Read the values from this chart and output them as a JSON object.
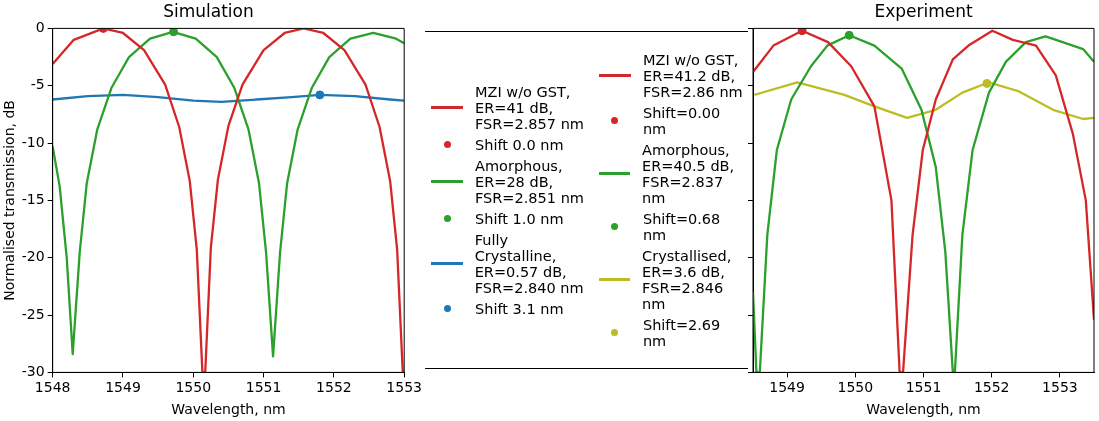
{
  "chart_data": [
    {
      "type": "line",
      "title": "Simulation",
      "xlabel": "Wavelength, nm",
      "ylabel": "Normalised transmission, dB",
      "xlim": [
        1548,
        1553
      ],
      "xticks": [
        1548,
        1549,
        1550,
        1551,
        1552,
        1553
      ],
      "ylim": [
        -30,
        0
      ],
      "yticks": [
        -30,
        -25,
        -20,
        -15,
        -10,
        -5,
        0
      ],
      "legend": "right",
      "series": [
        {
          "name": "MZI w/o GST,\nER=41 dB,\nFSR=2.857 nm",
          "color": "#d62728",
          "x": [
            1548,
            1548.3,
            1548.72,
            1549,
            1549.3,
            1549.6,
            1549.8,
            1549.95,
            1550.05,
            1550.13,
            1550.17,
            1550.25,
            1550.35,
            1550.5,
            1550.7,
            1551,
            1551.3,
            1551.57,
            1551.85,
            1552.15,
            1552.45,
            1552.65,
            1552.8,
            1552.9,
            1552.98
          ],
          "values": [
            -3.1,
            -1,
            0,
            -0.4,
            -1.9,
            -4.9,
            -8.6,
            -13.3,
            -19.3,
            -30,
            -30,
            -19.1,
            -13.2,
            -8.5,
            -4.9,
            -1.9,
            -0.4,
            0,
            -0.4,
            -1.9,
            -4.9,
            -8.6,
            -13.3,
            -19.3,
            -30
          ]
        },
        {
          "name": "Shift 0.0 nm",
          "type": "scatter",
          "marker": "circle",
          "color": "#d62728",
          "x": [
            1548.72
          ],
          "values": [
            0
          ]
        },
        {
          "name": "Amorphous,\nER=28 dB,\nFSR=2.851 nm",
          "color": "#2ca02c",
          "x": [
            1548,
            1548.1,
            1548.2,
            1548.285,
            1548.385,
            1548.485,
            1548.635,
            1548.835,
            1549.085,
            1549.385,
            1549.71,
            1550.035,
            1550.335,
            1550.585,
            1550.785,
            1550.935,
            1551.035,
            1551.135,
            1551.235,
            1551.335,
            1551.485,
            1551.685,
            1551.935,
            1552.235,
            1552.56,
            1552.885,
            1553
          ],
          "values": [
            -10.3,
            -13.8,
            -20,
            -28.4,
            -19.5,
            -13.5,
            -8.8,
            -5.2,
            -2.5,
            -0.9,
            -0.3,
            -0.9,
            -2.5,
            -5.2,
            -8.8,
            -13.5,
            -19.5,
            -28.6,
            -19.5,
            -13.5,
            -8.8,
            -5.2,
            -2.5,
            -0.9,
            -0.4,
            -0.9,
            -1.3
          ]
        },
        {
          "name": "Shift 1.0 nm",
          "type": "scatter",
          "marker": "circle",
          "color": "#2ca02c",
          "x": [
            1549.72
          ],
          "values": [
            -0.3
          ]
        },
        {
          "name": "Fully Crystalline,\nER=0.57 dB,\nFSR=2.840 nm",
          "color": "#1f77b4",
          "x": [
            1548,
            1548.5,
            1549,
            1549.5,
            1550,
            1550.4,
            1550.9,
            1551.4,
            1551.8,
            1552.3,
            1552.8,
            1553
          ],
          "values": [
            -6.2,
            -5.9,
            -5.8,
            -6,
            -6.3,
            -6.4,
            -6.2,
            -6,
            -5.8,
            -5.9,
            -6.2,
            -6.3
          ]
        },
        {
          "name": "Shift 3.1 nm",
          "type": "scatter",
          "marker": "circle",
          "color": "#1f77b4",
          "x": [
            1551.8
          ],
          "values": [
            -5.8
          ]
        }
      ]
    },
    {
      "type": "line",
      "title": "Experiment",
      "xlabel": "Wavelength, nm",
      "xlim": [
        1548.5,
        1553.5
      ],
      "xticks": [
        1549,
        1550,
        1551,
        1552,
        1553
      ],
      "ylim": [
        -30,
        0
      ],
      "yticks": [
        -30,
        -25,
        -20,
        -15,
        -10,
        -5,
        0
      ],
      "tick_labels": "x",
      "legend": "left",
      "series": [
        {
          "name": "MZI w/o GST,\nER=41.2 dB,\nFSR=2.86 nm",
          "color": "#d62728",
          "x": [
            1548.5,
            1548.8,
            1549.22,
            1549.6,
            1549.94,
            1550.28,
            1550.53,
            1550.65,
            1550.7,
            1550.84,
            1550.99,
            1551.18,
            1551.43,
            1551.66,
            1552.01,
            1552.31,
            1552.65,
            1552.94,
            1553.19,
            1553.38,
            1553.5
          ],
          "values": [
            -3.8,
            -1.5,
            -0.2,
            -1.2,
            -3.3,
            -6.8,
            -15,
            -30,
            -30,
            -18,
            -10.6,
            -6.2,
            -2.7,
            -1.5,
            -0.2,
            -1,
            -1.5,
            -4.1,
            -9.2,
            -15,
            -25.4
          ]
        },
        {
          "name": "Shift=0.00 nm",
          "type": "scatter",
          "marker": "circle",
          "color": "#d62728",
          "x": [
            1549.22
          ],
          "values": [
            -0.2
          ]
        },
        {
          "name": "Amorphous,\nER=40.5 dB,\nFSR=2.837 nm",
          "color": "#2ca02c",
          "x": [
            1548.5,
            1548.55,
            1548.6,
            1548.71,
            1548.85,
            1549.06,
            1549.35,
            1549.59,
            1549.91,
            1550.28,
            1550.68,
            1550.97,
            1551.18,
            1551.32,
            1551.43,
            1551.46,
            1551.57,
            1551.72,
            1551.96,
            1552.21,
            1552.5,
            1552.79,
            1553.04,
            1553.34,
            1553.5
          ],
          "values": [
            -23,
            -30,
            -30,
            -18,
            -10.6,
            -6.2,
            -3.3,
            -1.5,
            -0.6,
            -1.5,
            -3.5,
            -7.1,
            -12.1,
            -19.5,
            -30,
            -30,
            -18,
            -10.6,
            -5.6,
            -2.9,
            -1.2,
            -0.7,
            -1.2,
            -1.8,
            -2.9
          ]
        },
        {
          "name": "Shift=0.68 nm",
          "type": "scatter",
          "marker": "circle",
          "color": "#2ca02c",
          "x": [
            1549.91
          ],
          "values": [
            -0.6
          ]
        },
        {
          "name": "Crystallised,\nER=3.6 dB,\nFSR=2.846 nm",
          "color": "#bcbd22",
          "x": [
            1548.52,
            1549.15,
            1549.84,
            1550.28,
            1550.76,
            1551.18,
            1551.57,
            1551.96,
            1552.4,
            1552.9,
            1553.34,
            1553.5
          ],
          "values": [
            -5.8,
            -4.7,
            -5.8,
            -6.8,
            -7.8,
            -7.1,
            -5.6,
            -4.7,
            -5.5,
            -7.1,
            -7.9,
            -7.8
          ]
        },
        {
          "name": "Shift=2.69 nm",
          "type": "scatter",
          "marker": "circle",
          "color": "#bcbd22",
          "x": [
            1551.93
          ],
          "values": [
            -4.8
          ]
        }
      ]
    }
  ]
}
